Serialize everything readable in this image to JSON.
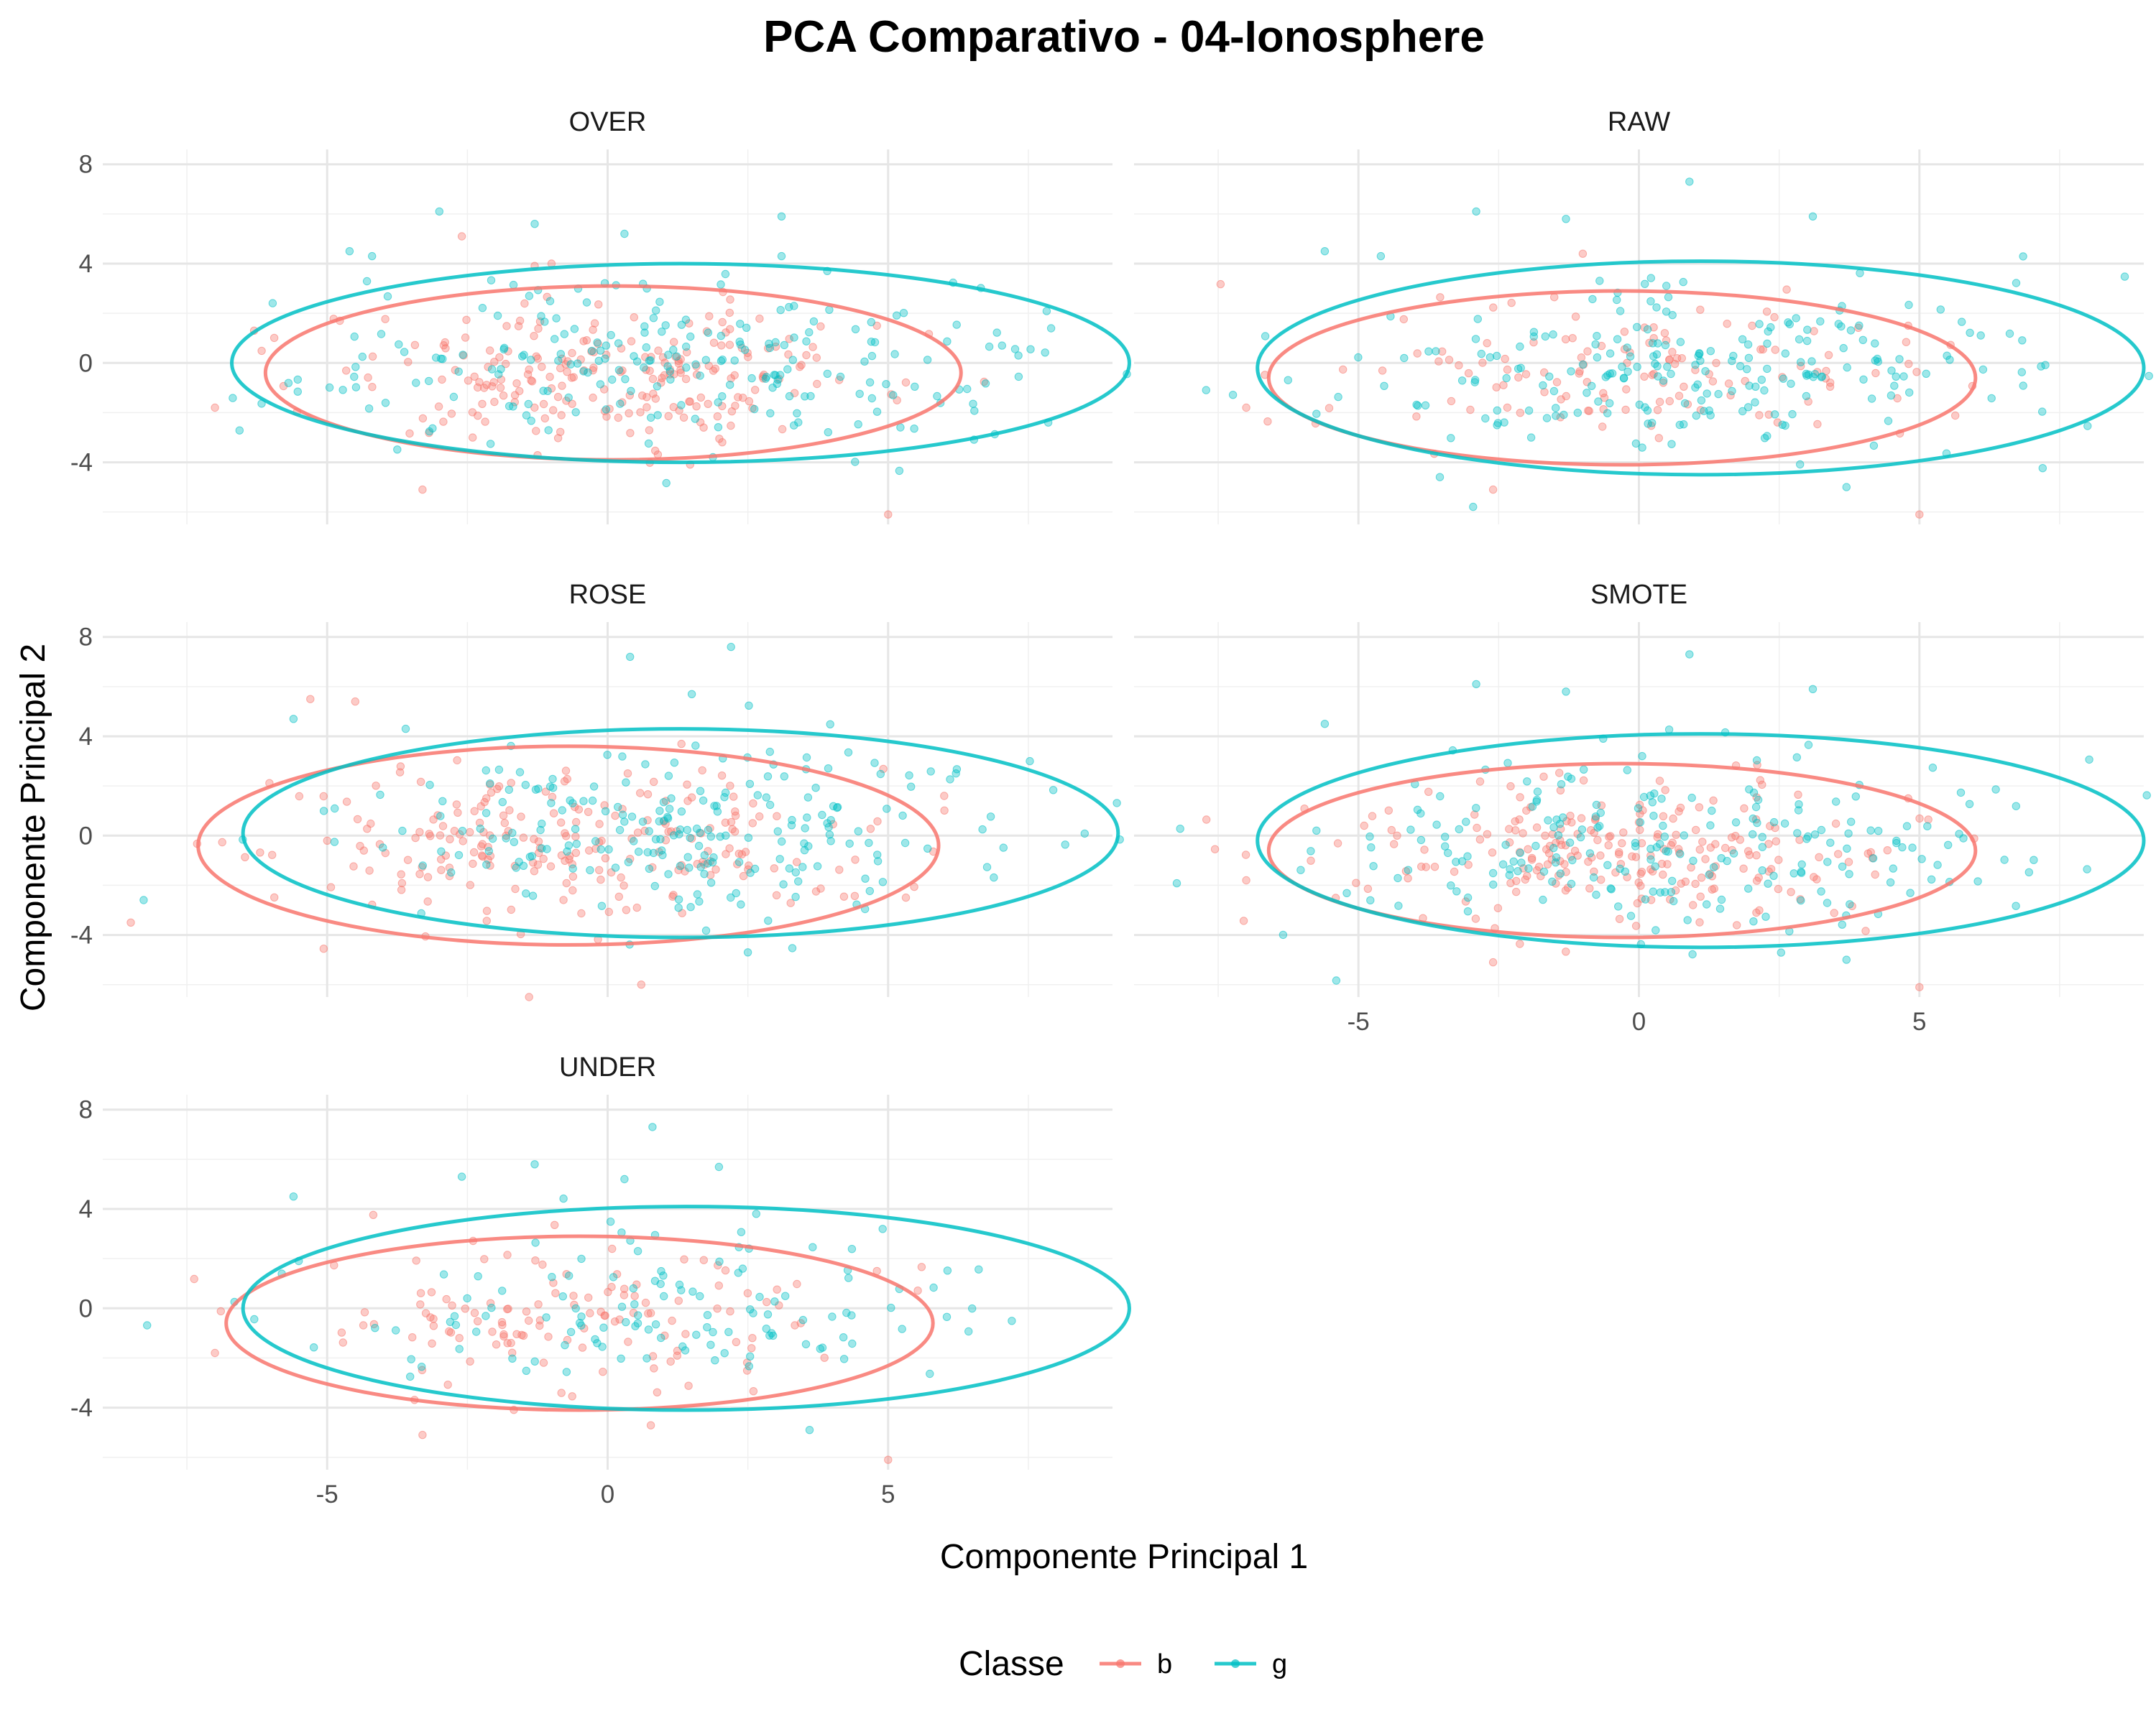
{
  "chart_data": {
    "type": "scatter",
    "title": "PCA Comparativo - 04-Ionosphere",
    "xlabel": "Componente Principal 1",
    "ylabel": "Componente Principal 2",
    "xlim": [
      -9,
      9
    ],
    "ylim": [
      -6.5,
      8.6
    ],
    "x_ticks": [
      -5,
      0,
      5
    ],
    "y_ticks": [
      -4,
      0,
      4,
      8
    ],
    "grid": true,
    "legend": {
      "title": "Classe",
      "position": "bottom",
      "entries": [
        {
          "label": "b",
          "color": "#F8766D"
        },
        {
          "label": "g",
          "color": "#00BFC4"
        }
      ]
    },
    "facets": [
      {
        "name": "OVER",
        "ellipses": {
          "b": {
            "cx": 0.1,
            "cy": -0.4,
            "rx": 6.2,
            "ry": 3.5
          },
          "g": {
            "cx": 1.3,
            "cy": 0.0,
            "rx": 8.0,
            "ry": 4.0
          }
        },
        "counts": {
          "b": 225,
          "g": 225
        },
        "extra_points": {
          "b": [
            [
              -7.0,
              -1.8
            ],
            [
              5.0,
              -6.1
            ],
            [
              -3.3,
              -5.1
            ],
            [
              -2.6,
              5.1
            ],
            [
              4.8,
              1.5
            ],
            [
              -1.0,
              4.0
            ]
          ],
          "g": [
            [
              -3.0,
              6.1
            ],
            [
              3.1,
              5.9
            ],
            [
              -1.3,
              5.6
            ],
            [
              0.3,
              5.2
            ],
            [
              -4.6,
              4.5
            ],
            [
              -4.2,
              4.3
            ],
            [
              3.1,
              4.3
            ]
          ]
        }
      },
      {
        "name": "RAW",
        "ellipses": {
          "b": {
            "cx": -0.3,
            "cy": -0.6,
            "rx": 6.3,
            "ry": 3.5
          },
          "g": {
            "cx": 1.1,
            "cy": -0.2,
            "rx": 7.9,
            "ry": 4.3
          }
        },
        "counts": {
          "b": 126,
          "g": 225
        },
        "extra_points": {
          "b": [
            [
              -7.0,
              -1.8
            ],
            [
              5.0,
              -6.1
            ],
            [
              -2.6,
              -5.1
            ],
            [
              4.8,
              1.5
            ],
            [
              -1.0,
              4.4
            ]
          ],
          "g": [
            [
              0.9,
              7.3
            ],
            [
              -2.9,
              6.1
            ],
            [
              3.1,
              5.9
            ],
            [
              -1.3,
              5.8
            ],
            [
              -5.6,
              4.5
            ],
            [
              -4.6,
              4.3
            ],
            [
              3.7,
              -5.0
            ]
          ]
        }
      },
      {
        "name": "ROSE",
        "ellipses": {
          "b": {
            "cx": -0.7,
            "cy": -0.4,
            "rx": 6.6,
            "ry": 4.0
          },
          "g": {
            "cx": 1.3,
            "cy": 0.1,
            "rx": 7.8,
            "ry": 4.2
          }
        },
        "counts": {
          "b": 225,
          "g": 225
        },
        "extra_points": {
          "b": [
            [
              -8.5,
              -3.5
            ],
            [
              -5.3,
              5.5
            ],
            [
              -1.4,
              -6.5
            ],
            [
              -4.5,
              5.4
            ],
            [
              6.0,
              1.6
            ],
            [
              0.6,
              -6.0
            ]
          ],
          "g": [
            [
              2.2,
              7.6
            ],
            [
              0.4,
              7.2
            ],
            [
              1.5,
              5.7
            ],
            [
              -5.6,
              4.7
            ],
            [
              -3.6,
              4.3
            ],
            [
              2.5,
              -4.7
            ]
          ]
        }
      },
      {
        "name": "SMOTE",
        "ellipses": {
          "b": {
            "cx": -0.3,
            "cy": -0.6,
            "rx": 6.3,
            "ry": 3.5
          },
          "g": {
            "cx": 1.1,
            "cy": -0.2,
            "rx": 7.9,
            "ry": 4.3
          }
        },
        "counts": {
          "b": 225,
          "g": 225
        },
        "extra_points": {
          "b": [
            [
              -7.0,
              -1.8
            ],
            [
              5.0,
              -6.1
            ],
            [
              -2.6,
              -5.1
            ],
            [
              4.8,
              1.5
            ]
          ],
          "g": [
            [
              0.9,
              7.3
            ],
            [
              -2.9,
              6.1
            ],
            [
              3.1,
              5.9
            ],
            [
              -1.3,
              5.8
            ],
            [
              -5.6,
              4.5
            ],
            [
              3.7,
              -5.0
            ]
          ]
        }
      },
      {
        "name": "UNDER",
        "ellipses": {
          "b": {
            "cx": -0.5,
            "cy": -0.6,
            "rx": 6.3,
            "ry": 3.5
          },
          "g": {
            "cx": 1.4,
            "cy": 0.0,
            "rx": 7.9,
            "ry": 4.1
          }
        },
        "counts": {
          "b": 126,
          "g": 126
        },
        "extra_points": {
          "b": [
            [
              -7.0,
              -1.8
            ],
            [
              5.0,
              -6.1
            ],
            [
              -3.3,
              -5.1
            ],
            [
              4.8,
              1.5
            ]
          ],
          "g": [
            [
              0.8,
              7.3
            ],
            [
              -1.3,
              5.8
            ],
            [
              -2.6,
              5.3
            ],
            [
              -5.6,
              4.5
            ],
            [
              3.6,
              -4.9
            ],
            [
              0.3,
              5.2
            ]
          ]
        }
      }
    ]
  }
}
